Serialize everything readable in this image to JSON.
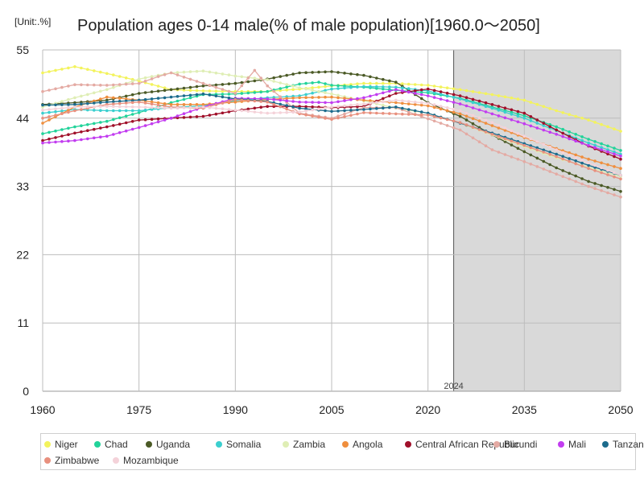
{
  "header": {
    "unit": "[Unit:.%]",
    "title": "Population ages 0-14 male(% of male population)[1960.0～2050]"
  },
  "chart_data": {
    "type": "line",
    "title": "Population ages 0-14 male(% of male population)[1960.0～2050]",
    "unit": "[Unit:.%]",
    "xlim": [
      1960,
      2050
    ],
    "ylim": [
      0,
      55
    ],
    "x_ticks": [
      1960,
      1975,
      1990,
      2005,
      2020,
      2035,
      2050
    ],
    "y_ticks": [
      0,
      11,
      22,
      33,
      44,
      55
    ],
    "projection_start": 2024,
    "projection_label": "2024",
    "grid": true,
    "legend_position": "bottom",
    "series": [
      {
        "name": "Niger",
        "color": "#f3f35c",
        "points": [
          [
            1960,
            51.3
          ],
          [
            1965,
            52.3
          ],
          [
            1970,
            51.2
          ],
          [
            1975,
            50.0
          ],
          [
            1980,
            48.6
          ],
          [
            1985,
            48.4
          ],
          [
            1990,
            48.3
          ],
          [
            1995,
            48.3
          ],
          [
            2000,
            48.7
          ],
          [
            2005,
            49.2
          ],
          [
            2010,
            49.6
          ],
          [
            2015,
            49.6
          ],
          [
            2020,
            49.3
          ],
          [
            2025,
            48.6
          ],
          [
            2030,
            47.8
          ],
          [
            2035,
            46.9
          ],
          [
            2040,
            45.2
          ],
          [
            2045,
            43.7
          ],
          [
            2050,
            41.9
          ]
        ]
      },
      {
        "name": "Chad",
        "color": "#22d39a",
        "points": [
          [
            1960,
            41.5
          ],
          [
            1965,
            42.6
          ],
          [
            1970,
            43.5
          ],
          [
            1975,
            44.9
          ],
          [
            1980,
            46.5
          ],
          [
            1985,
            47.8
          ],
          [
            1990,
            47.9
          ],
          [
            1995,
            48.3
          ],
          [
            2000,
            49.5
          ],
          [
            2003,
            49.8
          ],
          [
            2005,
            49.3
          ],
          [
            2010,
            49.0
          ],
          [
            2015,
            48.5
          ],
          [
            2020,
            48.1
          ],
          [
            2025,
            47.2
          ],
          [
            2030,
            45.8
          ],
          [
            2035,
            44.4
          ],
          [
            2040,
            42.6
          ],
          [
            2045,
            40.6
          ],
          [
            2050,
            38.8
          ]
        ]
      },
      {
        "name": "Uganda",
        "color": "#4b5a26",
        "points": [
          [
            1960,
            46.2
          ],
          [
            1965,
            46.5
          ],
          [
            1970,
            46.9
          ],
          [
            1975,
            48.0
          ],
          [
            1980,
            48.6
          ],
          [
            1985,
            49.2
          ],
          [
            1990,
            49.6
          ],
          [
            1995,
            50.3
          ],
          [
            2000,
            51.3
          ],
          [
            2005,
            51.5
          ],
          [
            2010,
            50.9
          ],
          [
            2015,
            49.8
          ],
          [
            2020,
            46.5
          ],
          [
            2025,
            44.3
          ],
          [
            2030,
            41.3
          ],
          [
            2035,
            38.6
          ],
          [
            2040,
            36.0
          ],
          [
            2045,
            33.8
          ],
          [
            2050,
            32.2
          ]
        ]
      },
      {
        "name": "Somalia",
        "color": "#3bcfcf",
        "points": [
          [
            1960,
            44.8
          ],
          [
            1965,
            45.4
          ],
          [
            1970,
            45.2
          ],
          [
            1975,
            45.2
          ],
          [
            1980,
            45.7
          ],
          [
            1985,
            46.0
          ],
          [
            1990,
            46.8
          ],
          [
            1995,
            47.3
          ],
          [
            2000,
            47.6
          ],
          [
            2005,
            48.7
          ],
          [
            2010,
            49.1
          ],
          [
            2015,
            49.0
          ],
          [
            2020,
            48.4
          ],
          [
            2025,
            47.1
          ],
          [
            2030,
            45.6
          ],
          [
            2035,
            44.0
          ],
          [
            2040,
            42.0
          ],
          [
            2045,
            40.0
          ],
          [
            2050,
            38.2
          ]
        ]
      },
      {
        "name": "Zambia",
        "color": "#dfeeb5",
        "points": [
          [
            1960,
            45.8
          ],
          [
            1965,
            47.3
          ],
          [
            1970,
            48.6
          ],
          [
            1975,
            50.3
          ],
          [
            1980,
            51.3
          ],
          [
            1985,
            51.6
          ],
          [
            1990,
            50.8
          ],
          [
            1995,
            50.2
          ],
          [
            2000,
            48.9
          ],
          [
            2005,
            47.9
          ],
          [
            2010,
            46.8
          ],
          [
            2015,
            45.6
          ],
          [
            2020,
            44.8
          ],
          [
            2025,
            43.2
          ],
          [
            2030,
            41.3
          ],
          [
            2035,
            39.4
          ],
          [
            2040,
            37.6
          ],
          [
            2045,
            36.1
          ],
          [
            2050,
            34.6
          ]
        ]
      },
      {
        "name": "Angola",
        "color": "#ef8e3d",
        "points": [
          [
            1960,
            43.2
          ],
          [
            1965,
            45.8
          ],
          [
            1970,
            47.4
          ],
          [
            1975,
            46.9
          ],
          [
            1980,
            46.2
          ],
          [
            1985,
            46.2
          ],
          [
            1990,
            46.6
          ],
          [
            1995,
            47.0
          ],
          [
            2000,
            47.3
          ],
          [
            2005,
            47.4
          ],
          [
            2010,
            46.9
          ],
          [
            2015,
            46.5
          ],
          [
            2020,
            46.0
          ],
          [
            2025,
            44.7
          ],
          [
            2030,
            42.8
          ],
          [
            2035,
            40.9
          ],
          [
            2040,
            39.1
          ],
          [
            2045,
            37.4
          ],
          [
            2050,
            35.9
          ]
        ]
      },
      {
        "name": "Central African Republic",
        "color": "#a0102a",
        "points": [
          [
            1960,
            40.4
          ],
          [
            1965,
            41.6
          ],
          [
            1970,
            42.6
          ],
          [
            1975,
            43.7
          ],
          [
            1980,
            44.0
          ],
          [
            1985,
            44.3
          ],
          [
            1990,
            45.2
          ],
          [
            1995,
            45.9
          ],
          [
            2000,
            45.9
          ],
          [
            2005,
            45.7
          ],
          [
            2010,
            45.9
          ],
          [
            2015,
            48.0
          ],
          [
            2020,
            48.7
          ],
          [
            2025,
            47.6
          ],
          [
            2030,
            46.2
          ],
          [
            2035,
            44.8
          ],
          [
            2040,
            42.1
          ],
          [
            2045,
            39.5
          ],
          [
            2050,
            37.4
          ]
        ]
      },
      {
        "name": "Burundi",
        "color": "#e4aaa3",
        "points": [
          [
            1960,
            48.3
          ],
          [
            1965,
            49.4
          ],
          [
            1970,
            49.3
          ],
          [
            1975,
            49.6
          ],
          [
            1978,
            50.7
          ],
          [
            1980,
            51.3
          ],
          [
            1985,
            49.6
          ],
          [
            1990,
            48.0
          ],
          [
            1993,
            51.7
          ],
          [
            1995,
            49.2
          ],
          [
            2000,
            44.8
          ],
          [
            2005,
            44.0
          ],
          [
            2010,
            45.7
          ],
          [
            2015,
            45.7
          ],
          [
            2020,
            43.9
          ],
          [
            2025,
            42.1
          ],
          [
            2030,
            38.9
          ],
          [
            2035,
            37.0
          ],
          [
            2040,
            35.0
          ],
          [
            2045,
            33.0
          ],
          [
            2050,
            31.3
          ]
        ]
      },
      {
        "name": "Mali",
        "color": "#c23cf0",
        "points": [
          [
            1960,
            40.0
          ],
          [
            1965,
            40.4
          ],
          [
            1970,
            41.1
          ],
          [
            1975,
            42.5
          ],
          [
            1980,
            44.0
          ],
          [
            1985,
            45.8
          ],
          [
            1990,
            47.2
          ],
          [
            1995,
            47.1
          ],
          [
            2000,
            46.6
          ],
          [
            2005,
            46.5
          ],
          [
            2010,
            47.3
          ],
          [
            2015,
            48.6
          ],
          [
            2020,
            47.6
          ],
          [
            2025,
            46.3
          ],
          [
            2030,
            44.7
          ],
          [
            2035,
            43.1
          ],
          [
            2040,
            41.4
          ],
          [
            2045,
            39.6
          ],
          [
            2050,
            37.9
          ]
        ]
      },
      {
        "name": "Tanzania",
        "color": "#1c6b8c",
        "points": [
          [
            1960,
            46.1
          ],
          [
            1965,
            46.2
          ],
          [
            1970,
            46.6
          ],
          [
            1975,
            46.9
          ],
          [
            1980,
            47.4
          ],
          [
            1985,
            47.9
          ],
          [
            1990,
            47.1
          ],
          [
            1995,
            46.7
          ],
          [
            2000,
            45.6
          ],
          [
            2005,
            45.1
          ],
          [
            2010,
            45.4
          ],
          [
            2015,
            45.8
          ],
          [
            2020,
            44.8
          ],
          [
            2025,
            43.2
          ],
          [
            2030,
            41.6
          ],
          [
            2035,
            39.9
          ],
          [
            2040,
            38.2
          ],
          [
            2045,
            36.4
          ],
          [
            2050,
            34.8
          ]
        ]
      },
      {
        "name": "Zimbabwe",
        "color": "#e8907e",
        "points": [
          [
            1960,
            44.0
          ],
          [
            1965,
            45.2
          ],
          [
            1970,
            46.2
          ],
          [
            1975,
            46.6
          ],
          [
            1980,
            45.8
          ],
          [
            1985,
            45.6
          ],
          [
            1990,
            47.0
          ],
          [
            1995,
            46.6
          ],
          [
            2000,
            44.7
          ],
          [
            2005,
            43.8
          ],
          [
            2010,
            44.9
          ],
          [
            2015,
            44.7
          ],
          [
            2020,
            44.5
          ],
          [
            2025,
            43.3
          ],
          [
            2030,
            41.4
          ],
          [
            2035,
            39.6
          ],
          [
            2040,
            37.8
          ],
          [
            2045,
            35.9
          ],
          [
            2050,
            34.2
          ]
        ]
      },
      {
        "name": "Mozambique",
        "color": "#f4d2d9",
        "points": [
          [
            1960,
            45.3
          ],
          [
            1965,
            45.8
          ],
          [
            1970,
            45.9
          ],
          [
            1975,
            45.8
          ],
          [
            1980,
            45.6
          ],
          [
            1985,
            45.8
          ],
          [
            1990,
            45.3
          ],
          [
            1995,
            44.8
          ],
          [
            2000,
            45.0
          ],
          [
            2005,
            45.8
          ],
          [
            2010,
            46.3
          ],
          [
            2015,
            46.9
          ],
          [
            2020,
            46.4
          ],
          [
            2025,
            45.2
          ],
          [
            2030,
            43.3
          ],
          [
            2035,
            41.1
          ],
          [
            2040,
            38.9
          ],
          [
            2045,
            36.8
          ],
          [
            2050,
            34.8
          ]
        ]
      }
    ]
  }
}
